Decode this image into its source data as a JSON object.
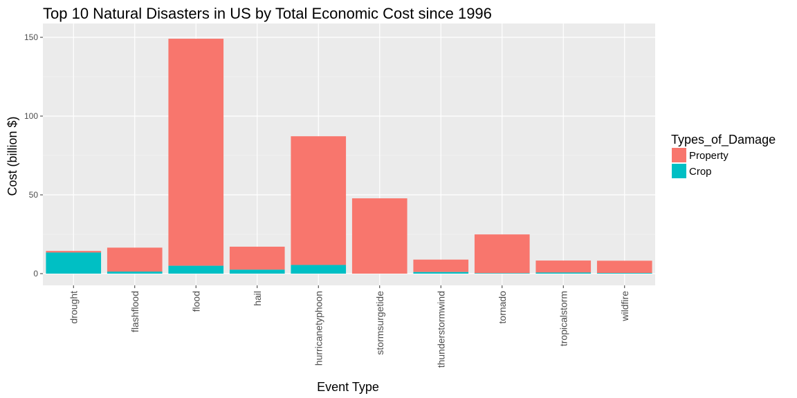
{
  "chart_data": {
    "type": "bar",
    "stacked": true,
    "title": "Top 10 Natural Disasters in US by Total Economic Cost since 1996",
    "xlabel": "Event Type",
    "ylabel": "Cost (billion $)",
    "ylim": [
      0,
      157
    ],
    "yticks": [
      0,
      50,
      100,
      150
    ],
    "grid": true,
    "legend_title": "Types_of_Damage",
    "legend_position": "right",
    "categories": [
      "drought",
      "flashflood",
      "flood",
      "hail",
      "hurricanetyphoon",
      "stormsurgetide",
      "thunderstormwind",
      "tornado",
      "tropicalstorm",
      "wildfire"
    ],
    "series": [
      {
        "name": "Property",
        "color": "#F8766D",
        "values": [
          1.0,
          15.2,
          144.1,
          14.6,
          81.7,
          47.8,
          7.9,
          24.6,
          7.6,
          7.8
        ]
      },
      {
        "name": "Crop",
        "color": "#00BFC4",
        "values": [
          13.4,
          1.3,
          5.0,
          2.5,
          5.5,
          0.0,
          1.0,
          0.3,
          0.7,
          0.4
        ]
      }
    ]
  }
}
